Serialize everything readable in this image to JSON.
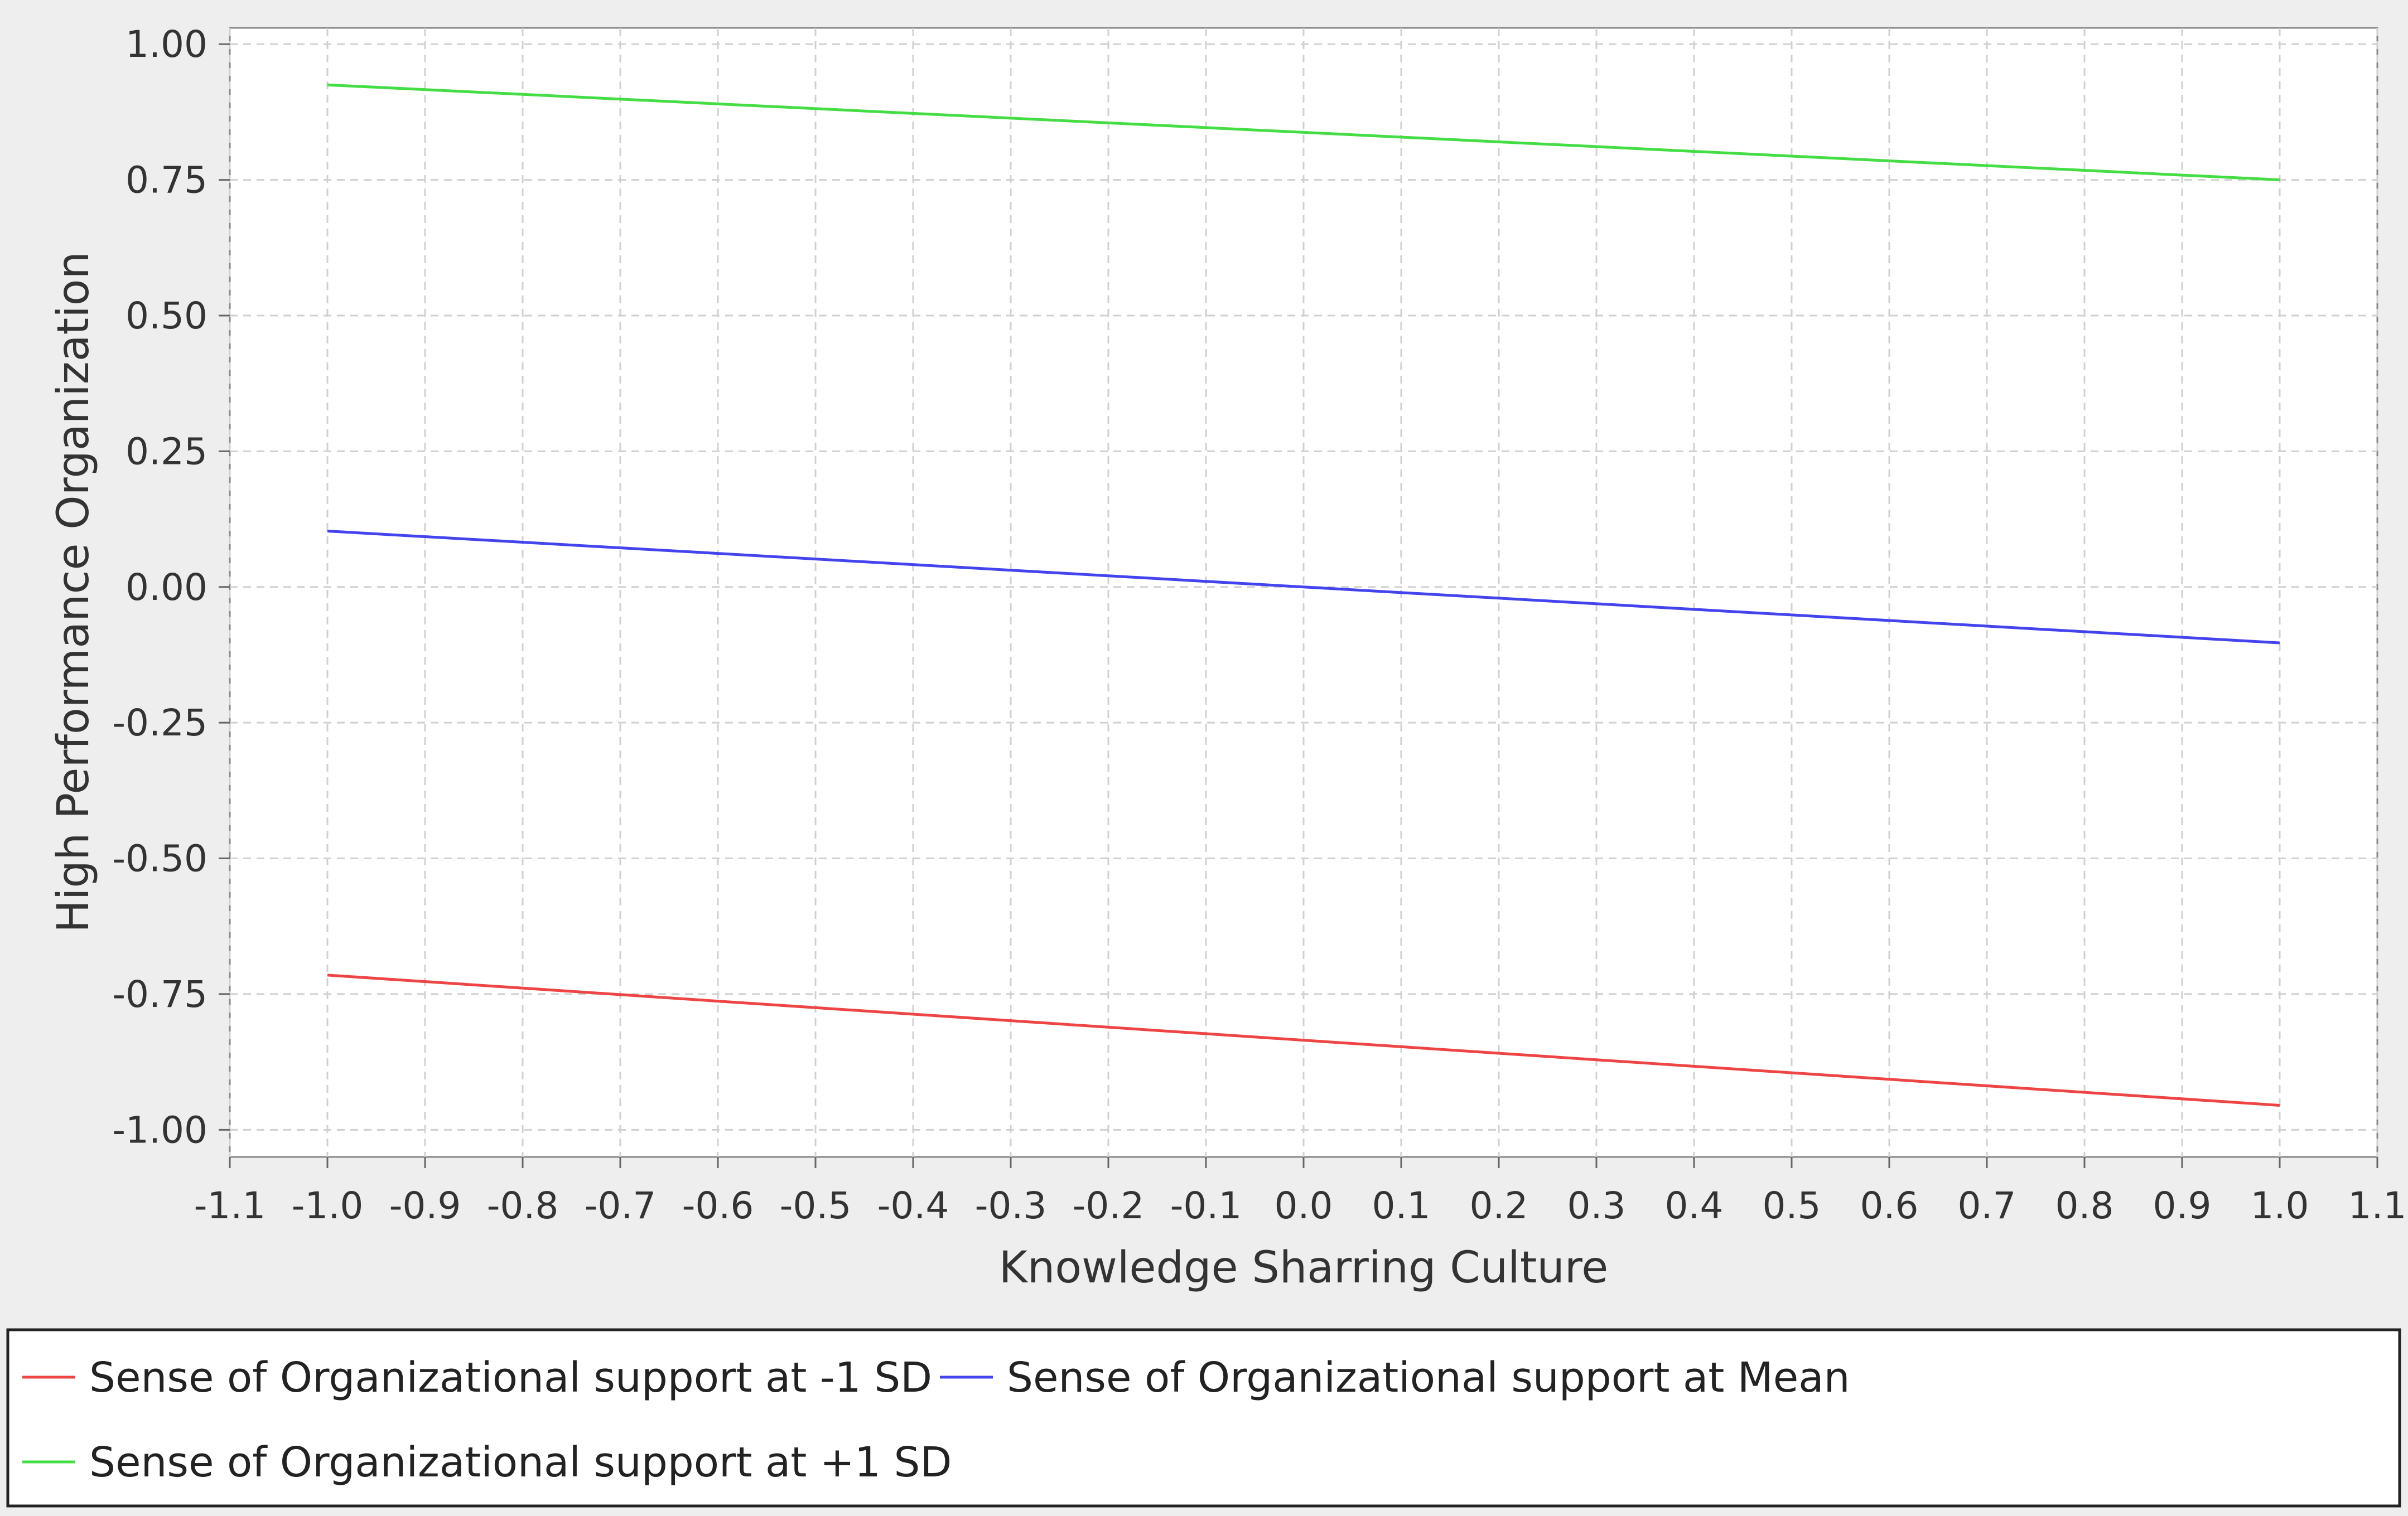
{
  "chart_data": {
    "type": "line",
    "title": "",
    "xlabel": "Knowledge Sharring Culture",
    "ylabel": "High Performance Organization",
    "xlim": [
      -1.1,
      1.1
    ],
    "ylim": [
      -1.05,
      1.03
    ],
    "x_ticks": [
      "-1.1",
      "-1.0",
      "-0.9",
      "-0.8",
      "-0.7",
      "-0.6",
      "-0.5",
      "-0.4",
      "-0.3",
      "-0.2",
      "-0.1",
      "0.0",
      "0.1",
      "0.2",
      "0.3",
      "0.4",
      "0.5",
      "0.6",
      "0.7",
      "0.8",
      "0.9",
      "1.0",
      "1.1"
    ],
    "y_ticks": [
      "-1.00",
      "-0.75",
      "-0.50",
      "-0.25",
      "0.00",
      "0.25",
      "0.50",
      "0.75",
      "1.00"
    ],
    "grid": true,
    "legend_position": "bottom",
    "series": [
      {
        "name": "Sense of Organizational support at -1 SD",
        "color": "#ee4444",
        "x": [
          -1.0,
          1.0
        ],
        "y": [
          -0.715,
          -0.955
        ]
      },
      {
        "name": "Sense of Organizational support at Mean",
        "color": "#4444ee",
        "x": [
          -1.0,
          1.0
        ],
        "y": [
          0.103,
          -0.103
        ]
      },
      {
        "name": "Sense of Organizational support at +1 SD",
        "color": "#44dd44",
        "x": [
          -1.0,
          1.0
        ],
        "y": [
          0.925,
          0.75
        ]
      }
    ]
  }
}
